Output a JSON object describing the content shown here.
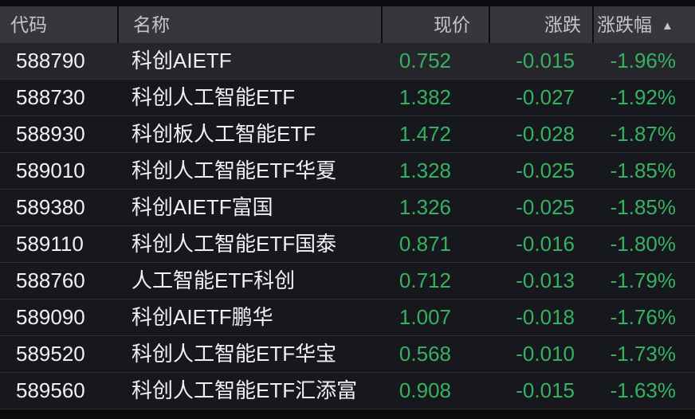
{
  "colors": {
    "background": "#0b0b0e",
    "header_background": "#36373d",
    "row_background": "#17181d",
    "selected_row_background": "#25252b",
    "text_primary": "#f0f1f3",
    "text_header": "#c3c5ca",
    "down_green": "#35b261"
  },
  "table": {
    "columns": [
      {
        "key": "code",
        "label": "代码"
      },
      {
        "key": "name",
        "label": "名称"
      },
      {
        "key": "price",
        "label": "现价"
      },
      {
        "key": "change",
        "label": "涨跌"
      },
      {
        "key": "pct",
        "label": "涨跌幅"
      }
    ],
    "sort": {
      "column": "pct",
      "direction": "ascending",
      "icon": "▲"
    },
    "rows": [
      {
        "code": "588790",
        "name": "科创AIETF",
        "price": "0.752",
        "change": "-0.015",
        "pct": "-1.96%",
        "selected": true
      },
      {
        "code": "588730",
        "name": "科创人工智能ETF",
        "price": "1.382",
        "change": "-0.027",
        "pct": "-1.92%",
        "selected": false
      },
      {
        "code": "588930",
        "name": "科创板人工智能ETF",
        "price": "1.472",
        "change": "-0.028",
        "pct": "-1.87%",
        "selected": false
      },
      {
        "code": "589010",
        "name": "科创人工智能ETF华夏",
        "price": "1.328",
        "change": "-0.025",
        "pct": "-1.85%",
        "selected": false
      },
      {
        "code": "589380",
        "name": "科创AIETF富国",
        "price": "1.326",
        "change": "-0.025",
        "pct": "-1.85%",
        "selected": false
      },
      {
        "code": "589110",
        "name": "科创人工智能ETF国泰",
        "price": "0.871",
        "change": "-0.016",
        "pct": "-1.80%",
        "selected": false
      },
      {
        "code": "588760",
        "name": "人工智能ETF科创",
        "price": "0.712",
        "change": "-0.013",
        "pct": "-1.79%",
        "selected": false
      },
      {
        "code": "589090",
        "name": "科创AIETF鹏华",
        "price": "1.007",
        "change": "-0.018",
        "pct": "-1.76%",
        "selected": false
      },
      {
        "code": "589520",
        "name": "科创人工智能ETF华宝",
        "price": "0.568",
        "change": "-0.010",
        "pct": "-1.73%",
        "selected": false
      },
      {
        "code": "589560",
        "name": "科创人工智能ETF汇添富",
        "price": "0.908",
        "change": "-0.015",
        "pct": "-1.63%",
        "selected": false
      }
    ]
  }
}
